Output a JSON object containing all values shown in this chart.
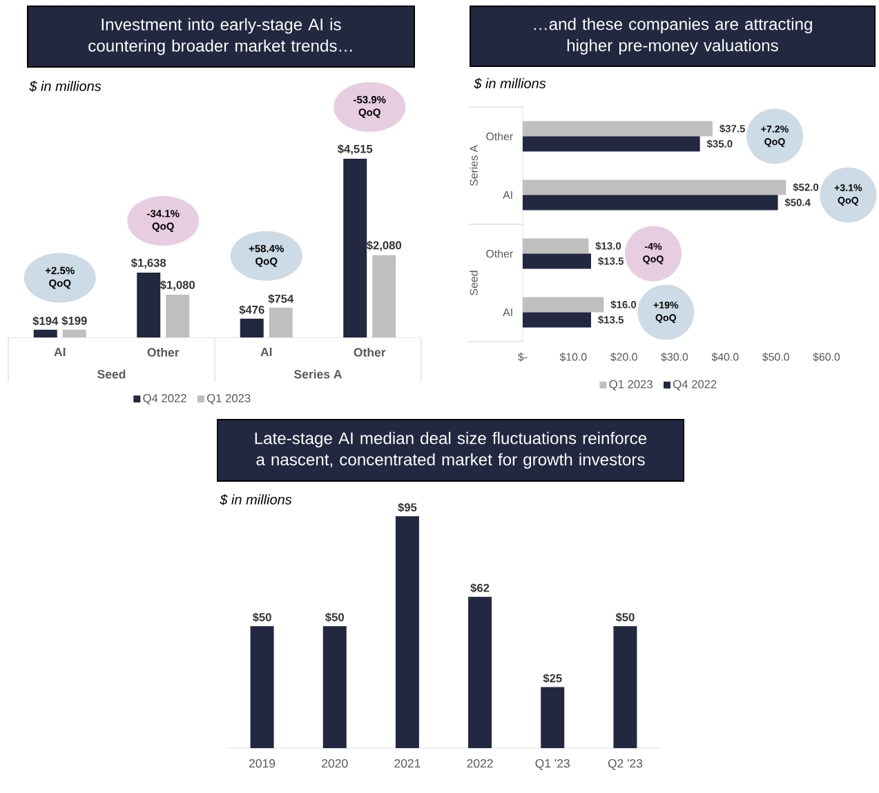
{
  "chart_data": [
    {
      "type": "bar",
      "title": "Investment into early-stage AI is countering broader market trends…",
      "subtitle": "$ in millions",
      "categories": [
        "AI",
        "Other",
        "AI",
        "Other"
      ],
      "series": [
        {
          "name": "Q4 2022",
          "color": "#222840",
          "values": [
            194,
            1638,
            476,
            4515
          ],
          "value_labels": [
            "$194",
            "$1,638",
            "$476",
            "$4,515"
          ]
        },
        {
          "name": "Q1 2023",
          "color": "#bfbfbf",
          "values": [
            199,
            1080,
            754,
            2080
          ],
          "value_labels": [
            "$199",
            "$1,080",
            "$754",
            "$2,080"
          ]
        }
      ],
      "tick_labels": "x",
      "legend": "bottom",
      "annotations": [
        "+2.5% QoQ",
        "-34.1% QoQ",
        "+58.4% QoQ",
        "-53.9% QoQ",
        "Seed",
        "Series A"
      ]
    },
    {
      "type": "bar",
      "orientation": "horizontal",
      "title": "…and these companies are attracting higher pre-money valuations",
      "subtitle": "$ in millions",
      "categories": [
        "Other",
        "AI",
        "Other",
        "AI"
      ],
      "series": [
        {
          "name": "Q1 2023",
          "color": "#bfbfbf",
          "values": [
            37.5,
            52.0,
            13.0,
            16.0
          ],
          "value_labels": [
            "$37.5",
            "$52.0",
            "$13.0",
            "$16.0"
          ]
        },
        {
          "name": "Q4 2022",
          "color": "#222840",
          "values": [
            35.0,
            50.4,
            13.5,
            13.5
          ],
          "value_labels": [
            "$35.0",
            "$50.4",
            "$13.5",
            "$13.5"
          ]
        }
      ],
      "xlim": [
        0,
        60
      ],
      "xticks": [
        {
          "value": 0,
          "label": "$-"
        },
        {
          "value": 10,
          "label": "$10.0"
        },
        {
          "value": 20,
          "label": "$20.0"
        },
        {
          "value": 30,
          "label": "$30.0"
        },
        {
          "value": 40,
          "label": "$40.0"
        },
        {
          "value": 50,
          "label": "$50.0"
        },
        {
          "value": 60,
          "label": "$60.0"
        }
      ],
      "legend": "bottom",
      "annotations": [
        "+7.2% QoQ",
        "+3.1% QoQ",
        "-4% QoQ",
        "+19% QoQ",
        "Series A",
        "Seed"
      ]
    },
    {
      "type": "bar",
      "title": "Late-stage AI median deal size fluctuations reinforce a nascent, concentrated market for growth investors",
      "subtitle": "$ in millions",
      "categories": [
        "2019",
        "2020",
        "2021",
        "2022",
        "Q1 '23",
        "Q2 '23"
      ],
      "values": [
        50,
        50,
        95,
        62,
        25,
        50
      ],
      "color": "#222840",
      "value_labels": [
        "$50",
        "$50",
        "$95",
        "$62",
        "$25",
        "$50"
      ],
      "tick_labels": "x"
    }
  ]
}
